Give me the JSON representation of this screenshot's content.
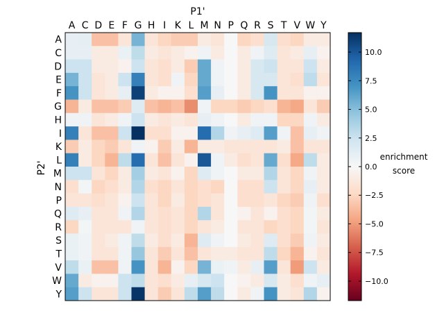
{
  "chart_data": {
    "type": "heatmap",
    "xlabel": "P1'",
    "ylabel": "P2'",
    "x_categories": [
      "A",
      "C",
      "D",
      "E",
      "F",
      "G",
      "H",
      "I",
      "K",
      "L",
      "M",
      "N",
      "P",
      "Q",
      "R",
      "S",
      "T",
      "V",
      "W",
      "Y"
    ],
    "y_categories": [
      "A",
      "C",
      "D",
      "E",
      "F",
      "G",
      "H",
      "I",
      "K",
      "L",
      "M",
      "N",
      "P",
      "Q",
      "R",
      "S",
      "T",
      "V",
      "W",
      "Y"
    ],
    "colorbar": {
      "label_line1": "enrichment",
      "label_line2": "score",
      "range": [
        -11.7,
        11.7
      ],
      "ticks": [
        10.0,
        7.5,
        5.0,
        2.5,
        0.0,
        -2.5,
        -5.0,
        -7.5,
        -10.0
      ],
      "tick_labels": [
        "10.0",
        "7.5",
        "5.0",
        "2.5",
        "0.0",
        "−2.5",
        "−5.0",
        "−7.5",
        "−10.0"
      ],
      "colormap": "RdBu"
    },
    "values": [
      [
        1.0,
        1.2,
        -3.5,
        -3.5,
        -1.5,
        5.5,
        -1.5,
        -2.5,
        -3.0,
        -3.0,
        -1.0,
        -1.5,
        0,
        -2.5,
        -2.0,
        2.0,
        -2.0,
        -2.5,
        -1.0,
        -1.0
      ],
      [
        1.0,
        1.0,
        -1.0,
        -1.0,
        0.8,
        3.0,
        -1.0,
        -1.5,
        -1.0,
        -0.5,
        0.5,
        -1.0,
        0,
        -1.0,
        0.5,
        1.5,
        -1.5,
        -1.0,
        1.0,
        -0.5
      ],
      [
        2.5,
        2.5,
        -1.0,
        -1.0,
        -0.5,
        2.5,
        -1.5,
        -2.0,
        -1.0,
        -3.0,
        6.0,
        0.5,
        0,
        -1.0,
        2.0,
        2.5,
        -1.5,
        -1.5,
        2.5,
        -1.0
      ],
      [
        5.5,
        2.5,
        -1.5,
        -1.0,
        2.5,
        8.0,
        -1.5,
        -2.0,
        0.5,
        -2.5,
        6.0,
        0.5,
        0,
        -1.0,
        2.0,
        2.0,
        -1.5,
        -2.0,
        3.0,
        -1.5
      ],
      [
        7.0,
        2.5,
        -1.5,
        -1.0,
        1.0,
        11.0,
        -1.0,
        -0.5,
        -0.5,
        -2.0,
        6.5,
        1.0,
        0,
        -1.0,
        2.0,
        7.0,
        -1.5,
        -1.5,
        -0.5,
        -0.5
      ],
      [
        -4.0,
        -1.0,
        -3.5,
        -3.5,
        -3.0,
        1.5,
        -3.5,
        -4.0,
        -3.5,
        -5.5,
        0.5,
        -2.5,
        -2.5,
        -3.0,
        -2.5,
        -2.0,
        -4.0,
        -4.5,
        -1.5,
        -3.0
      ],
      [
        0.5,
        0.5,
        -1.5,
        -1.0,
        0.5,
        2.5,
        -1.0,
        -1.5,
        -1.0,
        -1.5,
        1.0,
        0.5,
        0,
        -1.0,
        0.5,
        0.5,
        -2.5,
        -2.5,
        0.5,
        -1.0
      ],
      [
        8.0,
        -1.5,
        -3.5,
        -3.5,
        2.5,
        11.7,
        -2.0,
        -2.0,
        -0.5,
        -0.5,
        9.0,
        3.5,
        0.5,
        1.0,
        1.5,
        6.5,
        0.5,
        -3.5,
        1.0,
        0.5
      ],
      [
        -3.0,
        -1.0,
        -2.5,
        -3.0,
        -1.5,
        0.5,
        -0.5,
        -3.0,
        -1.0,
        -4.0,
        -1.0,
        -1.0,
        -1.5,
        -1.5,
        -1.5,
        -1.5,
        -1.0,
        -3.5,
        -1.5,
        -1.5
      ],
      [
        8.0,
        -1.0,
        -2.5,
        -4.0,
        3.0,
        9.0,
        -1.5,
        -3.5,
        -1.5,
        -0.5,
        10.0,
        0.5,
        -1.0,
        -2.0,
        -1.5,
        6.0,
        -2.0,
        -4.5,
        3.0,
        -1.0
      ],
      [
        2.5,
        2.5,
        -1.5,
        -2.5,
        -1.0,
        4.0,
        -1.0,
        -1.5,
        -0.5,
        -2.5,
        1.5,
        0.5,
        0,
        -1.0,
        -1.0,
        3.5,
        -1.5,
        -2.5,
        0.5,
        -1.0
      ],
      [
        -2.0,
        0.3,
        -2.5,
        -2.0,
        -1.0,
        3.5,
        -2.0,
        -2.5,
        -1.5,
        -2.5,
        -2.0,
        -2.5,
        0,
        -2.0,
        -2.0,
        2.5,
        -1.5,
        -2.5,
        1.0,
        -1.0
      ],
      [
        -1.5,
        -1.5,
        -2.0,
        -1.5,
        -0.5,
        2.5,
        -1.5,
        -2.5,
        -1.0,
        -2.5,
        -2.0,
        -1.5,
        0,
        -2.0,
        -2.0,
        -1.5,
        -2.5,
        -3.0,
        0.5,
        -2.0
      ],
      [
        1.5,
        1.0,
        -1.5,
        -1.5,
        0.5,
        3.5,
        -1.5,
        -2.0,
        -1.5,
        -2.5,
        3.5,
        -1.5,
        0,
        -0.5,
        -1.5,
        -0.5,
        -2.0,
        -2.5,
        0.3,
        -1.0
      ],
      [
        -2.5,
        0.3,
        -1.5,
        -1.5,
        -1.5,
        0.5,
        -1.5,
        -2.0,
        -1.5,
        -2.5,
        -1.5,
        -1.0,
        0,
        -1.5,
        -1.5,
        -2.5,
        -2.0,
        -2.5,
        0.3,
        -1.5
      ],
      [
        0.8,
        0.5,
        -1.5,
        -1.0,
        0.5,
        3.0,
        -1.0,
        -2.0,
        -1.0,
        -4.0,
        1.5,
        0.5,
        0,
        -1.0,
        -1.5,
        1.5,
        -2.0,
        -3.0,
        0.5,
        -1.0
      ],
      [
        0.8,
        0.5,
        -1.5,
        -1.5,
        0.5,
        4.5,
        -1.5,
        -3.0,
        -1.5,
        -3.5,
        -1.5,
        -1.0,
        -1.0,
        -1.5,
        -1.5,
        3.0,
        -2.5,
        -4.0,
        -0.5,
        -1.5
      ],
      [
        3.0,
        0.8,
        -3.5,
        -3.5,
        0.5,
        7.0,
        -1.5,
        -4.0,
        -0.5,
        -2.5,
        5.5,
        0.8,
        0.5,
        -1.0,
        1.0,
        6.5,
        -1.5,
        -5.0,
        2.5,
        -1.0
      ],
      [
        6.0,
        -1.0,
        -0.5,
        -0.5,
        2.5,
        3.0,
        -1.5,
        -2.0,
        -1.0,
        1.0,
        2.0,
        2.5,
        0,
        -0.5,
        -1.0,
        2.0,
        -1.0,
        -2.0,
        0.5,
        1.0
      ],
      [
        6.5,
        2.5,
        -1.5,
        -1.5,
        2.5,
        11.5,
        -1.5,
        -3.0,
        -1.5,
        3.0,
        6.5,
        3.0,
        0,
        -1.0,
        0.5,
        7.0,
        -1.0,
        -1.5,
        3.5,
        -0.5
      ]
    ]
  }
}
